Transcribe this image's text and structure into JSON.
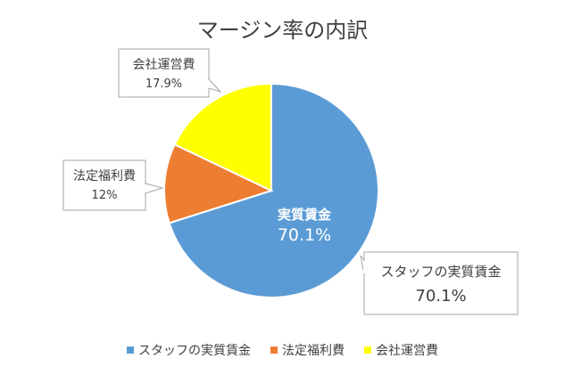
{
  "chart_data": {
    "type": "pie",
    "title": "マージン率の内訳",
    "categories": [
      "スタッフの実質賃金",
      "法定福利費",
      "会社運営費"
    ],
    "values": [
      70.1,
      12,
      17.9
    ],
    "colors": [
      "#5B9BD5",
      "#ED7D31",
      "#FFFF00"
    ],
    "data_labels": [
      {
        "name": "スタッフの実質賃金",
        "value": "70.1%"
      },
      {
        "name": "法定福利費",
        "value": "12%"
      },
      {
        "name": "会社運営費",
        "value": "17.9%"
      }
    ],
    "inside_label": {
      "name": "実質賃金",
      "value": "70.1%"
    },
    "legend_position": "bottom"
  }
}
